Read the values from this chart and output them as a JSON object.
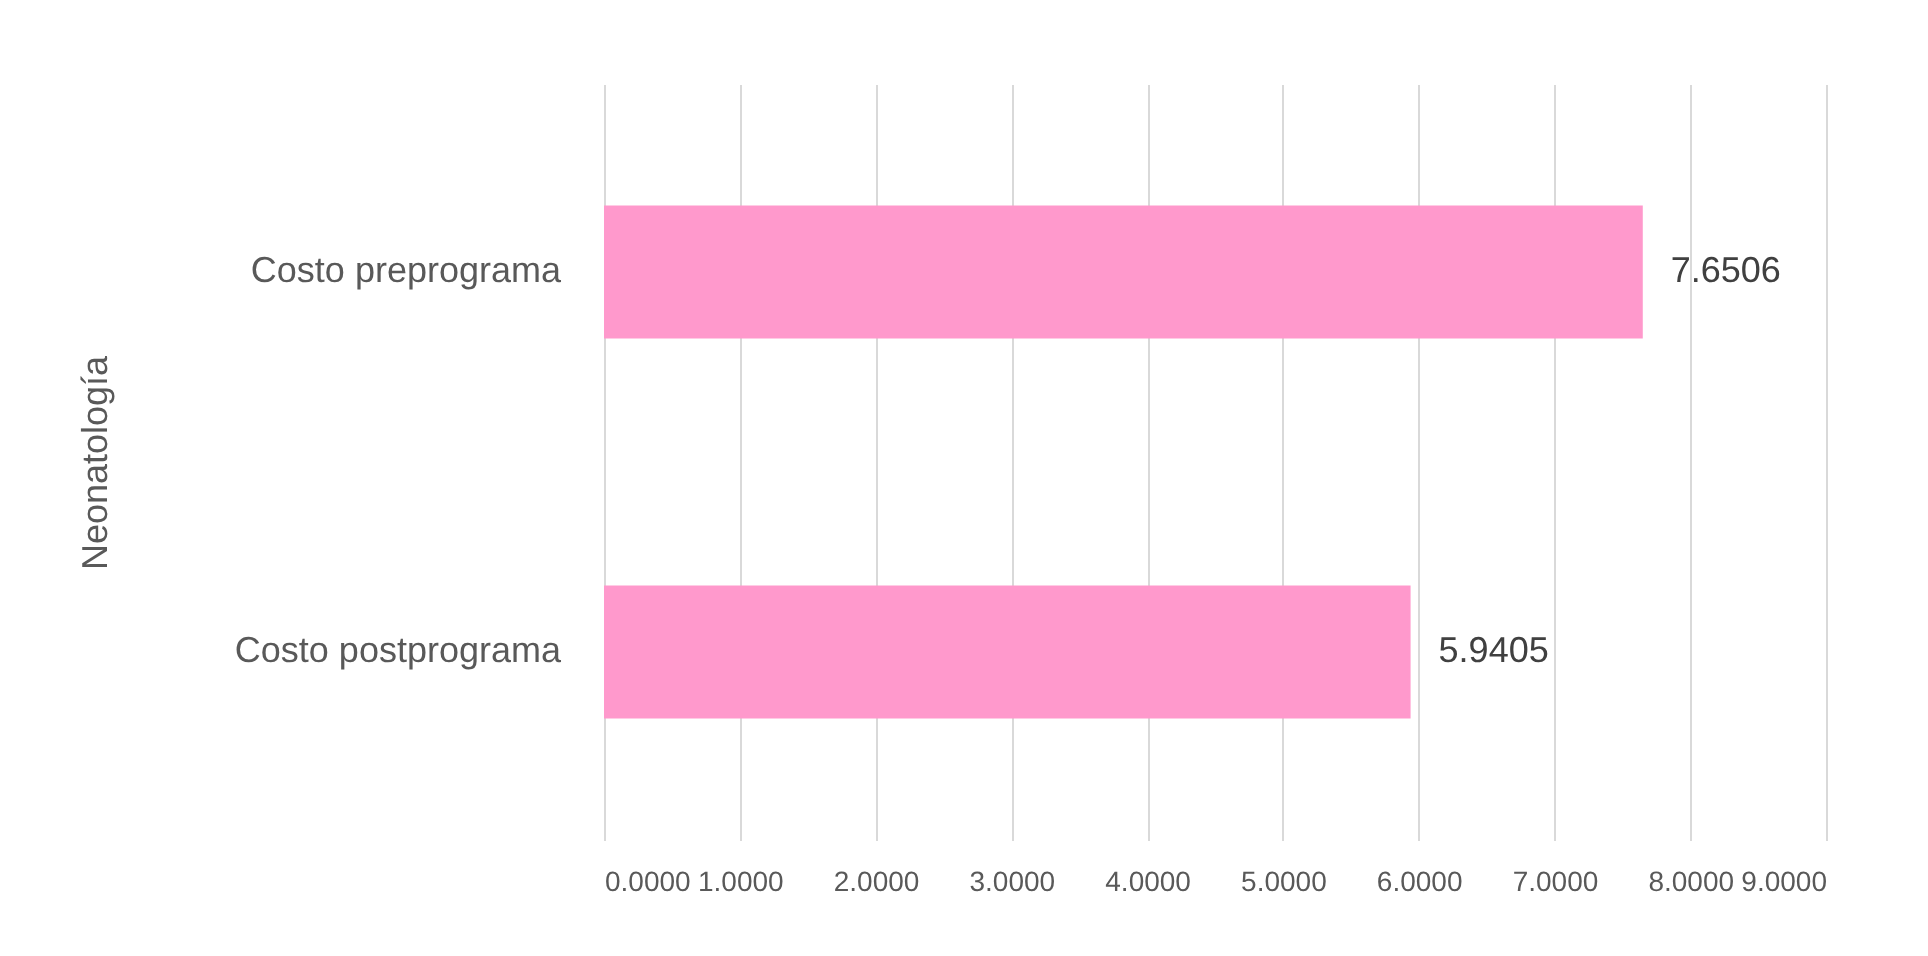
{
  "chart_data": {
    "type": "bar",
    "orientation": "horizontal",
    "ylabel": "Neonatología",
    "categories": [
      "Costo preprograma",
      "Costo postprograma"
    ],
    "values": [
      7.6506,
      5.9405
    ],
    "color": "#ff99cc",
    "xlim": [
      0,
      9
    ],
    "xticks": [
      {
        "value": 0,
        "label": "0.0000"
      },
      {
        "value": 1,
        "label": "1.0000"
      },
      {
        "value": 2,
        "label": "2.0000"
      },
      {
        "value": 3,
        "label": "3.0000"
      },
      {
        "value": 4,
        "label": "4.0000"
      },
      {
        "value": 5,
        "label": "5.0000"
      },
      {
        "value": 6,
        "label": "6.0000"
      },
      {
        "value": 7,
        "label": "7.0000"
      },
      {
        "value": 8,
        "label": "8.0000"
      },
      {
        "value": 9,
        "label": "9.0000"
      }
    ],
    "data_labels": true,
    "grid": "x"
  }
}
